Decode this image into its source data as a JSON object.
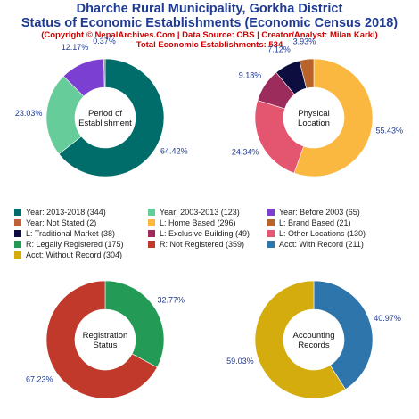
{
  "header": {
    "title_line1": "Dharche Rural Municipality, Gorkha District",
    "title_line2": "Status of Economic Establishments (Economic Census 2018)",
    "credit": "(Copyright © NepalArchives.Com | Data Source: CBS | Creator/Analyst: Milan Karki)",
    "total": "Total Economic Establishments: 534"
  },
  "legend": [
    {
      "label": "Year: 2013-2018 (344)",
      "color": "#006d6a"
    },
    {
      "label": "Year: 2003-2013 (123)",
      "color": "#66cc99"
    },
    {
      "label": "Year: Before 2003 (65)",
      "color": "#7b3fd1"
    },
    {
      "label": "Year: Not Stated (2)",
      "color": "#c0603a"
    },
    {
      "label": "L: Home Based (296)",
      "color": "#fbb840"
    },
    {
      "label": "L: Brand Based (21)",
      "color": "#b9622a"
    },
    {
      "label": "L: Traditional Market (38)",
      "color": "#0d0d3f"
    },
    {
      "label": "L: Exclusive Building (49)",
      "color": "#9b2c5c"
    },
    {
      "label": "L: Other Locations (130)",
      "color": "#e4566f"
    },
    {
      "label": "R: Legally Registered (175)",
      "color": "#239b56"
    },
    {
      "label": "R: Not Registered (359)",
      "color": "#c0392b"
    },
    {
      "label": "Acct: With Record (211)",
      "color": "#2e75ac"
    },
    {
      "label": "Acct: Without Record (304)",
      "color": "#d4ac0d"
    }
  ],
  "chart_data": [
    {
      "type": "pie",
      "center_label": [
        "Period of",
        "Establishment"
      ],
      "slices": [
        {
          "name": "Year: 2013-2018",
          "value": 344,
          "percent": "64.42%",
          "color": "#006d6a"
        },
        {
          "name": "Year: 2003-2013",
          "value": 123,
          "percent": "23.03%",
          "color": "#66cc99"
        },
        {
          "name": "Year: Before 2003",
          "value": 65,
          "percent": "12.17%",
          "color": "#7b3fd1"
        },
        {
          "name": "Year: Not Stated",
          "value": 2,
          "percent": "0.37%",
          "color": "#c0603a"
        }
      ]
    },
    {
      "type": "pie",
      "center_label": [
        "Physical",
        "Location"
      ],
      "slices": [
        {
          "name": "L: Home Based",
          "value": 296,
          "percent": "55.43%",
          "color": "#fbb840"
        },
        {
          "name": "L: Other Locations",
          "value": 130,
          "percent": "24.34%",
          "color": "#e4566f"
        },
        {
          "name": "L: Exclusive Building",
          "value": 49,
          "percent": "9.18%",
          "color": "#9b2c5c"
        },
        {
          "name": "L: Traditional Market",
          "value": 38,
          "percent": "7.12%",
          "color": "#0d0d3f"
        },
        {
          "name": "L: Brand Based",
          "value": 21,
          "percent": "3.93%",
          "color": "#b9622a"
        }
      ]
    },
    {
      "type": "pie",
      "center_label": [
        "Registration",
        "Status"
      ],
      "slices": [
        {
          "name": "R: Legally Registered",
          "value": 175,
          "percent": "32.77%",
          "color": "#239b56"
        },
        {
          "name": "R: Not Registered",
          "value": 359,
          "percent": "67.23%",
          "color": "#c0392b"
        }
      ]
    },
    {
      "type": "pie",
      "center_label": [
        "Accounting",
        "Records"
      ],
      "slices": [
        {
          "name": "Acct: With Record",
          "value": 211,
          "percent": "40.97%",
          "color": "#2e75ac"
        },
        {
          "name": "Acct: Without Record",
          "value": 304,
          "percent": "59.03%",
          "color": "#d4ac0d"
        }
      ]
    }
  ]
}
